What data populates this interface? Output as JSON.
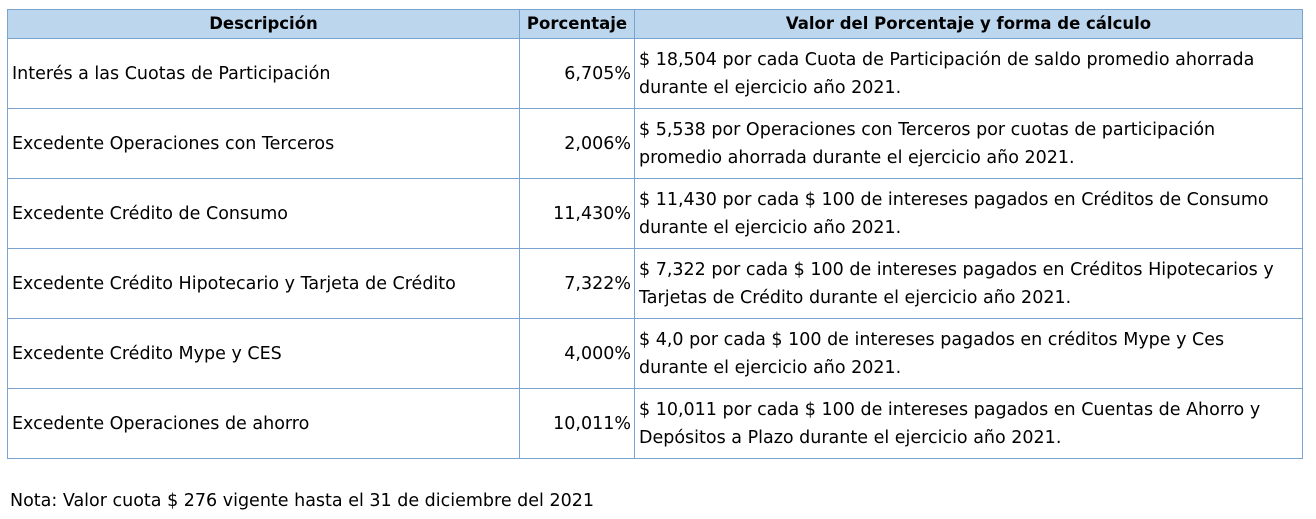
{
  "table": {
    "headers": {
      "descripcion": "Descripción",
      "porcentaje": "Porcentaje",
      "valor": "Valor del Porcentaje y forma de cálculo"
    },
    "rows": [
      {
        "descripcion": "Interés a las Cuotas de Participación",
        "porcentaje": "6,705%",
        "valor_line1": "$ 18,504 por cada Cuota de Participación de saldo promedio ahorrada",
        "valor_line2": "durante el ejercicio año 2021."
      },
      {
        "descripcion": "Excedente Operaciones con Terceros",
        "porcentaje": "2,006%",
        "valor_line1": "$ 5,538 por Operaciones con Terceros por cuotas de participación",
        "valor_line2": "promedio ahorrada durante el ejercicio año 2021."
      },
      {
        "descripcion": "Excedente Crédito de Consumo",
        "porcentaje": "11,430%",
        "valor_line1": "$ 11,430 por cada $ 100 de intereses pagados en Créditos de Consumo",
        "valor_line2": "durante el ejercicio año 2021."
      },
      {
        "descripcion": "Excedente Crédito Hipotecario y Tarjeta de Crédito",
        "porcentaje": "7,322%",
        "valor_line1": "$ 7,322 por cada $ 100 de intereses pagados en Créditos Hipotecarios y",
        "valor_line2": "Tarjetas de Crédito durante el ejercicio año 2021."
      },
      {
        "descripcion": "Excedente Crédito Mype y CES",
        "porcentaje": "4,000%",
        "valor_line1": "$ 4,0 por cada $ 100 de intereses pagados en créditos Mype y Ces",
        "valor_line2": "durante el ejercicio año 2021."
      },
      {
        "descripcion": "Excedente Operaciones de ahorro",
        "porcentaje": "10,011%",
        "valor_line1": "$ 10,011 por cada $ 100 de intereses pagados en Cuentas de Ahorro y",
        "valor_line2": "Depósitos a Plazo durante el ejercicio año 2021."
      }
    ]
  },
  "note": "Nota: Valor cuota $ 276 vigente hasta el 31 de diciembre del 2021",
  "colors": {
    "header_background": "#bcd6ee",
    "border": "#7aa3cf",
    "text": "#000000"
  }
}
